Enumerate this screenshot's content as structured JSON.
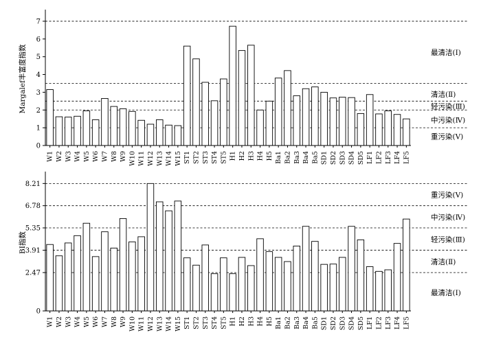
{
  "chart_data": [
    {
      "type": "bar",
      "ylabel": "Margalef丰富度指数",
      "xlabel": "",
      "ylim": [
        0,
        7.5
      ],
      "yticks": [
        0,
        1,
        2,
        3,
        4,
        5,
        6,
        7
      ],
      "threshold_lines": [
        1,
        2,
        2.5,
        3.5,
        7
      ],
      "zone_labels": [
        {
          "text": "最清洁(Ⅰ)",
          "y": 5.25
        },
        {
          "text": "清洁(Ⅱ)",
          "y": 2.9
        },
        {
          "text": "轻污染(Ⅲ)",
          "y": 2.22
        },
        {
          "text": "中污染(Ⅳ)",
          "y": 1.45
        },
        {
          "text": "重污染(Ⅴ)",
          "y": 0.52
        }
      ],
      "categories": [
        "W1",
        "W2",
        "W3",
        "W4",
        "W5",
        "W6",
        "W7",
        "W8",
        "W9",
        "W10",
        "W11",
        "W12",
        "W13",
        "W14",
        "W15",
        "ST1",
        "ST2",
        "ST3",
        "ST4",
        "ST5",
        "H1",
        "H2",
        "H3",
        "H4",
        "H5",
        "Ba1",
        "Ba2",
        "Ba3",
        "Ba4",
        "Ba5",
        "SD1",
        "SD2",
        "SD3",
        "SD4",
        "SD5",
        "LF1",
        "LF2",
        "LF3",
        "LF4",
        "LF5"
      ],
      "values": [
        3.15,
        1.62,
        1.6,
        1.65,
        1.95,
        1.45,
        2.65,
        2.2,
        2.07,
        1.92,
        1.42,
        1.2,
        1.45,
        1.15,
        1.12,
        5.6,
        4.88,
        3.56,
        2.52,
        3.75,
        6.72,
        5.35,
        5.65,
        2.0,
        2.5,
        3.8,
        4.22,
        2.8,
        3.2,
        3.3,
        3.0,
        2.68,
        2.72,
        2.7,
        1.8,
        2.87,
        1.78,
        1.95,
        1.75,
        1.5
      ]
    },
    {
      "type": "bar",
      "ylabel": "BI指数",
      "xlabel": "",
      "ylim": [
        0,
        8.8
      ],
      "yticks": [
        "0",
        "2.47",
        "3.91",
        "5.35",
        "6.78",
        "8.21"
      ],
      "ytick_values": [
        0,
        2.47,
        3.91,
        5.35,
        6.78,
        8.21
      ],
      "threshold_lines": [
        2.47,
        3.91,
        5.35,
        6.78,
        8.21
      ],
      "zone_labels": [
        {
          "text": "重污染(Ⅴ)",
          "y": 7.5
        },
        {
          "text": "中污染(Ⅳ)",
          "y": 6.06
        },
        {
          "text": "轻污染(Ⅲ)",
          "y": 4.63
        },
        {
          "text": "清洁(Ⅱ)",
          "y": 3.19
        },
        {
          "text": "最清洁(Ⅰ)",
          "y": 1.2
        }
      ],
      "categories": [
        "W1",
        "W2",
        "W3",
        "W4",
        "W5",
        "W6",
        "W7",
        "W8",
        "W9",
        "W10",
        "W11",
        "W12",
        "W13",
        "W14",
        "W15",
        "ST1",
        "ST2",
        "ST3",
        "ST4",
        "ST5",
        "H1",
        "H2",
        "H3",
        "H4",
        "H5",
        "Ba1",
        "Ba2",
        "Ba3",
        "Ba4",
        "Ba5",
        "SD1",
        "SD2",
        "SD3",
        "SD4",
        "SD5",
        "LF1",
        "LF2",
        "LF3",
        "LF4",
        "LF5"
      ],
      "values": [
        4.28,
        3.55,
        4.38,
        4.85,
        5.65,
        3.5,
        5.1,
        4.05,
        5.95,
        4.45,
        4.78,
        8.21,
        7.03,
        6.45,
        7.08,
        3.42,
        2.95,
        4.25,
        2.4,
        3.42,
        2.4,
        3.45,
        2.92,
        4.65,
        3.82,
        3.45,
        3.18,
        4.18,
        5.45,
        4.48,
        3.0,
        3.02,
        3.45,
        5.45,
        4.58,
        2.85,
        2.55,
        2.65,
        4.35,
        5.92
      ]
    }
  ]
}
